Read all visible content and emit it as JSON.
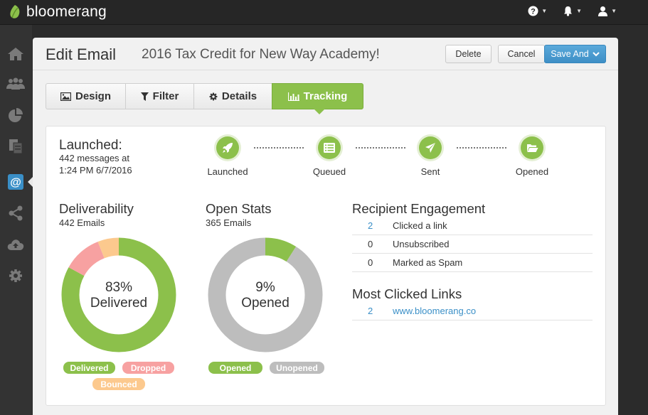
{
  "app": {
    "name": "bloomerang"
  },
  "header": {
    "title": "Edit Email",
    "subtitle": "2016 Tax Credit for New Way Academy!",
    "delete_label": "Delete",
    "cancel_label": "Cancel",
    "save_label": "Save And"
  },
  "tabs": [
    {
      "label": "Design",
      "icon": "image-icon"
    },
    {
      "label": "Filter",
      "icon": "funnel-icon"
    },
    {
      "label": "Details",
      "icon": "gear-icon"
    },
    {
      "label": "Tracking",
      "icon": "bar-chart-icon",
      "active": true
    }
  ],
  "launch": {
    "title": "Launched:",
    "line1": "442 messages at",
    "line2": "1:24 PM 6/7/2016"
  },
  "steps": [
    {
      "label": "Launched",
      "icon": "rocket-icon"
    },
    {
      "label": "Queued",
      "icon": "list-icon"
    },
    {
      "label": "Sent",
      "icon": "paper-plane-icon"
    },
    {
      "label": "Opened",
      "icon": "folder-open-icon"
    }
  ],
  "deliverability": {
    "title": "Deliverability",
    "subtitle": "442 Emails",
    "center_pct": "83%",
    "center_label": "Delivered",
    "segments": [
      {
        "name": "Delivered",
        "fraction": 0.83,
        "color": "#8cc04b"
      },
      {
        "name": "Dropped",
        "fraction": 0.11,
        "color": "#f7a1a1"
      },
      {
        "name": "Bounced",
        "fraction": 0.06,
        "color": "#fcc98e"
      }
    ],
    "legend": [
      "Delivered",
      "Dropped",
      "Bounced"
    ]
  },
  "open_stats": {
    "title": "Open Stats",
    "subtitle": "365 Emails",
    "center_pct": "9%",
    "center_label": "Opened",
    "segments": [
      {
        "name": "Opened",
        "fraction": 0.09,
        "color": "#8cc04b"
      },
      {
        "name": "Unopened",
        "fraction": 0.91,
        "color": "#bdbdbd"
      }
    ],
    "legend": [
      "Opened",
      "Unopened"
    ]
  },
  "engagement": {
    "title": "Recipient Engagement",
    "rows": [
      {
        "count": "2",
        "label": "Clicked a link",
        "linked": true
      },
      {
        "count": "0",
        "label": "Unsubscribed"
      },
      {
        "count": "0",
        "label": "Marked as Spam"
      }
    ]
  },
  "links": {
    "title": "Most Clicked Links",
    "rows": [
      {
        "count": "2",
        "url": "www.bloomerang.co"
      }
    ]
  },
  "colors": {
    "accent_green": "#8cc04b",
    "accent_blue": "#3a8fc7"
  }
}
